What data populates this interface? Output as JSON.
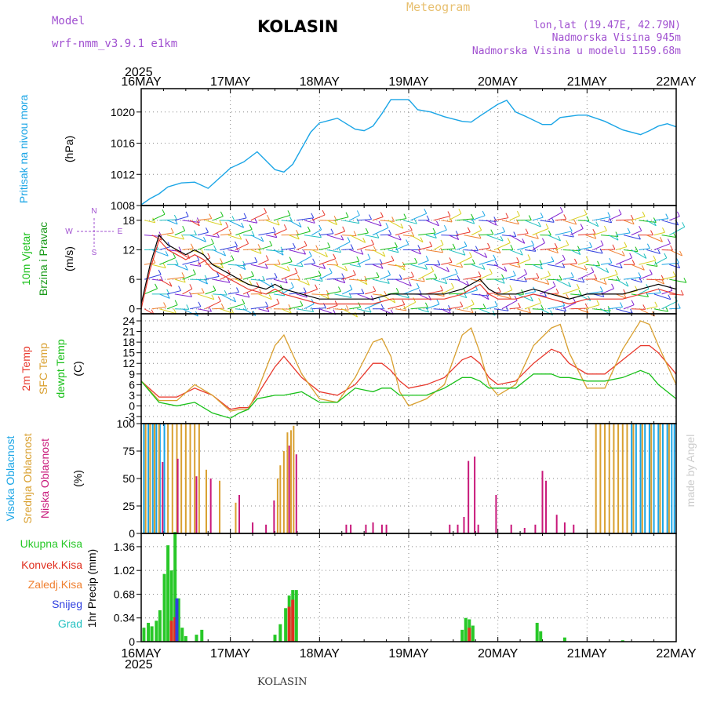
{
  "header": {
    "model_label": "Model",
    "model_name": "wrf-nmm_v3.9.1 e1km",
    "station": "KOLASIN",
    "chart_title": "Meteogram",
    "lonlat": "lon,lat (19.47E, 42.79N)",
    "elevation": "Nadmorska Visina 945m",
    "model_elevation": "Nadmorska Visina u modelu 1159.68m",
    "year": "2025",
    "footer": "KOLASIN",
    "credit": "made by Angel"
  },
  "colors": {
    "pressure": "#1aa5e6",
    "temp2m": "#e8382c",
    "sfc": "#d9a030",
    "dew": "#18c018",
    "high": "#1aa5e6",
    "mid": "#d9a030",
    "low": "#c8187a",
    "total": "#28c828",
    "conv": "#e03020",
    "frozen": "#f08030",
    "snow": "#3040e0",
    "hail": "#20c0c0",
    "wind_text_a": "#18c018",
    "wind_text_b": "#1a9a1a",
    "purple": "#a050d0"
  },
  "chart_data": [
    {
      "type": "line",
      "name": "pressure",
      "ylabel": [
        "Pritisak na nivou mora",
        "(hPa)"
      ],
      "ylim": [
        1008,
        1023
      ],
      "yticks": [
        1008,
        1012,
        1016,
        1020
      ],
      "grid": true,
      "x_days": [
        "16MAY",
        "17MAY",
        "18MAY",
        "19MAY",
        "20MAY",
        "21MAY",
        "22MAY"
      ],
      "x": [
        0,
        0.1,
        0.2,
        0.3,
        0.45,
        0.6,
        0.75,
        1.0,
        1.15,
        1.3,
        1.5,
        1.6,
        1.7,
        1.9,
        2.0,
        2.2,
        2.3,
        2.4,
        2.5,
        2.6,
        2.7,
        2.8,
        3.0,
        3.1,
        3.25,
        3.4,
        3.6,
        3.7,
        3.8,
        4.0,
        4.1,
        4.2,
        4.3,
        4.5,
        4.6,
        4.7,
        4.9,
        5.0,
        5.2,
        5.4,
        5.6,
        5.7,
        5.8,
        5.9,
        6.0
      ],
      "values": [
        1008.1,
        1008.9,
        1009.5,
        1010.4,
        1010.9,
        1011.0,
        1010.2,
        1012.8,
        1013.6,
        1014.9,
        1012.6,
        1012.3,
        1013.3,
        1017.4,
        1018.6,
        1019.2,
        1018.5,
        1017.8,
        1017.6,
        1018.2,
        1019.8,
        1021.6,
        1021.6,
        1020.3,
        1020.0,
        1019.4,
        1018.8,
        1018.7,
        1019.5,
        1021.0,
        1021.5,
        1020.0,
        1019.5,
        1018.4,
        1018.4,
        1019.3,
        1019.6,
        1019.6,
        1018.8,
        1017.7,
        1017.1,
        1017.6,
        1018.2,
        1018.5,
        1018.1
      ]
    },
    {
      "type": "line",
      "name": "wind",
      "ylabel": [
        "10m Vjetar",
        "Brzina i Pravac",
        "(m/s)"
      ],
      "compass": [
        "N",
        "E",
        "W",
        "S"
      ],
      "ylim": [
        -1,
        21
      ],
      "yticks": [
        0,
        6,
        12,
        18
      ],
      "grid": true,
      "barb_levels": [
        0,
        3,
        6,
        9,
        12,
        15,
        18
      ],
      "series": [
        {
          "name": "speed",
          "x": [
            0,
            0.1,
            0.15,
            0.2,
            0.3,
            0.4,
            0.5,
            0.6,
            0.7,
            0.8,
            0.9,
            1.0,
            1.1,
            1.2,
            1.4,
            1.5,
            1.6,
            1.8,
            2.0,
            2.2,
            2.4,
            2.6,
            2.8,
            3.0,
            3.2,
            3.4,
            3.6,
            3.7,
            3.8,
            3.9,
            4.0,
            4.2,
            4.4,
            4.6,
            4.8,
            5.0,
            5.2,
            5.4,
            5.6,
            5.8,
            6.0
          ],
          "values": [
            1,
            9,
            12,
            15,
            13,
            12,
            11,
            12,
            11,
            9,
            8,
            7,
            6,
            5,
            4,
            5,
            4,
            3,
            2,
            2,
            2,
            2,
            3,
            3,
            3,
            3,
            4,
            5,
            6,
            4,
            3,
            3,
            4,
            3,
            2,
            3,
            3,
            3,
            4,
            5,
            4
          ]
        }
      ]
    },
    {
      "type": "line",
      "name": "temperature",
      "ylabel": [
        "2m Temp",
        "SFC Temp",
        "dewpt Temp",
        "(C)"
      ],
      "ylim": [
        -5,
        26
      ],
      "yticks": [
        -3,
        0,
        3,
        6,
        9,
        12,
        15,
        18,
        21,
        24
      ],
      "grid": true,
      "series": [
        {
          "name": "2m Temp",
          "color": "temp2m",
          "x": [
            0,
            0.2,
            0.4,
            0.6,
            0.8,
            1.0,
            1.1,
            1.2,
            1.3,
            1.5,
            1.6,
            1.8,
            2.0,
            2.2,
            2.4,
            2.6,
            2.7,
            2.8,
            2.9,
            3.0,
            3.2,
            3.4,
            3.6,
            3.7,
            3.8,
            3.9,
            4.0,
            4.2,
            4.4,
            4.6,
            4.7,
            4.8,
            5.0,
            5.2,
            5.4,
            5.6,
            5.7,
            5.8,
            6.0
          ],
          "values": [
            7,
            2.5,
            2.5,
            5,
            3,
            -1,
            -0.5,
            -0.5,
            3,
            11,
            14,
            8,
            4,
            3,
            6,
            12,
            12,
            10,
            7,
            5,
            6,
            8,
            13,
            14,
            12,
            8,
            6,
            7,
            12,
            16,
            15,
            12,
            9,
            9,
            13,
            17,
            17,
            15,
            9
          ]
        },
        {
          "name": "SFC Temp",
          "color": "sfc",
          "x": [
            0,
            0.2,
            0.4,
            0.6,
            0.8,
            1.0,
            1.1,
            1.2,
            1.3,
            1.5,
            1.6,
            1.8,
            2.0,
            2.2,
            2.4,
            2.6,
            2.7,
            2.8,
            2.9,
            3.0,
            3.2,
            3.4,
            3.6,
            3.7,
            3.8,
            3.9,
            4.0,
            4.2,
            4.4,
            4.6,
            4.7,
            4.8,
            5.0,
            5.2,
            5.4,
            5.6,
            5.7,
            5.8,
            6.0
          ],
          "values": [
            7,
            1.5,
            1.5,
            6,
            3,
            -1.5,
            -1,
            -1,
            4,
            17,
            20,
            9,
            2,
            1,
            8,
            18,
            19,
            14,
            4,
            0,
            2,
            6,
            20,
            22,
            15,
            6,
            3,
            6,
            17,
            22,
            23,
            15,
            5,
            5,
            16,
            24,
            23,
            17,
            6
          ]
        },
        {
          "name": "dewpt Temp",
          "color": "dew",
          "x": [
            0,
            0.2,
            0.4,
            0.6,
            0.8,
            1.0,
            1.1,
            1.2,
            1.3,
            1.5,
            1.6,
            1.8,
            2.0,
            2.2,
            2.4,
            2.6,
            2.7,
            2.8,
            2.9,
            3.0,
            3.2,
            3.4,
            3.6,
            3.7,
            3.8,
            3.9,
            4.0,
            4.2,
            4.4,
            4.6,
            4.7,
            4.8,
            5.0,
            5.2,
            5.4,
            5.6,
            5.7,
            5.8,
            6.0
          ],
          "values": [
            7,
            1,
            0,
            1,
            -2,
            -3.5,
            -2,
            -1,
            2,
            3,
            3,
            4,
            1,
            1,
            5,
            4,
            5,
            5,
            3,
            3,
            3,
            5,
            8,
            8,
            7,
            5,
            5,
            5,
            9,
            9,
            8,
            8,
            7,
            7,
            8,
            10,
            9,
            6,
            2
          ]
        }
      ]
    },
    {
      "type": "bar",
      "name": "clouds",
      "ylabel": [
        "Visoka Oblacnost",
        "Srednja Oblacnost",
        "Niska Oblacnost",
        "(%)"
      ],
      "ylim": [
        0,
        100
      ],
      "yticks": [
        0,
        25,
        50,
        75,
        100
      ],
      "grid": true,
      "series": [
        {
          "name": "Visoka Oblacnost",
          "color": "high",
          "x": [
            0.03,
            0.08,
            0.13,
            0.17,
            0.21,
            0.26,
            5.45,
            5.5,
            5.55,
            5.6,
            5.65,
            5.7,
            5.75,
            5.8,
            5.85,
            5.9,
            5.95,
            5.98
          ],
          "values": [
            100,
            100,
            100,
            100,
            100,
            100,
            100,
            100,
            100,
            100,
            100,
            100,
            100,
            100,
            100,
            100,
            100,
            100
          ]
        },
        {
          "name": "Srednja Oblacnost",
          "color": "mid",
          "x": [
            0.05,
            0.1,
            0.15,
            0.2,
            0.3,
            0.35,
            0.4,
            0.45,
            0.5,
            0.55,
            0.6,
            0.65,
            0.73,
            0.88,
            1.06,
            1.53,
            1.56,
            1.6,
            1.64,
            1.68,
            1.71,
            5.1,
            5.15,
            5.2,
            5.25,
            5.3,
            5.35,
            5.4,
            5.45,
            5.52,
            5.62,
            5.72,
            5.82,
            5.92
          ],
          "values": [
            100,
            100,
            100,
            100,
            100,
            100,
            100,
            100,
            100,
            100,
            100,
            100,
            58,
            48,
            28,
            50,
            62,
            75,
            92,
            94,
            98,
            100,
            100,
            100,
            100,
            100,
            100,
            100,
            100,
            100,
            100,
            100,
            100,
            100
          ]
        },
        {
          "name": "Niska Oblacnost",
          "color": "low",
          "x": [
            0.24,
            0.41,
            0.62,
            0.78,
            1.1,
            1.25,
            1.4,
            1.49,
            1.66,
            1.74,
            2.3,
            2.35,
            2.52,
            2.6,
            2.7,
            2.75,
            3.46,
            3.55,
            3.62,
            3.67,
            3.74,
            3.78,
            3.98,
            4.15,
            4.3,
            4.42,
            4.5,
            4.54,
            4.66,
            4.75,
            4.85
          ],
          "values": [
            65,
            68,
            52,
            50,
            35,
            10,
            8,
            30,
            80,
            72,
            8,
            8,
            8,
            10,
            8,
            8,
            8,
            8,
            15,
            66,
            70,
            8,
            35,
            8,
            5,
            8,
            57,
            48,
            17,
            10,
            8
          ]
        }
      ]
    },
    {
      "type": "bar",
      "name": "precipitation",
      "ylabel": [
        "1hr Precip (mm)"
      ],
      "legend": [
        "Ukupna Kisa",
        "Konvek.Kisa",
        "Zaledj.Kisa",
        "Snijeg",
        "Grad"
      ],
      "ylim": [
        0,
        1.55
      ],
      "yticks": [
        0,
        0.34,
        0.68,
        1.02,
        1.36
      ],
      "grid": true,
      "series": [
        {
          "name": "Ukupna Kisa",
          "color": "total",
          "x": [
            0.03,
            0.08,
            0.12,
            0.17,
            0.21,
            0.26,
            0.3,
            0.34,
            0.38,
            0.42,
            0.46,
            0.5,
            0.62,
            0.68,
            1.5,
            1.56,
            1.62,
            1.66,
            1.7,
            1.74,
            3.6,
            3.64,
            3.68,
            3.72,
            4.44,
            4.48,
            4.75,
            5.4
          ],
          "values": [
            0.2,
            0.27,
            0.22,
            0.3,
            0.45,
            0.97,
            1.38,
            1.02,
            1.57,
            0.62,
            0.2,
            0.08,
            0.1,
            0.17,
            0.1,
            0.25,
            0.48,
            0.66,
            0.74,
            0.74,
            0.17,
            0.34,
            0.32,
            0.23,
            0.27,
            0.15,
            0.06,
            0.02
          ]
        },
        {
          "name": "Konvek.Kisa",
          "color": "conv",
          "x": [
            0.34,
            0.38,
            1.66,
            1.7,
            3.68
          ],
          "values": [
            0.3,
            0.35,
            0.5,
            0.6,
            0.2
          ]
        },
        {
          "name": "Snijeg",
          "color": "snow",
          "x": [
            0.4
          ],
          "values": [
            0.62
          ]
        }
      ]
    }
  ]
}
